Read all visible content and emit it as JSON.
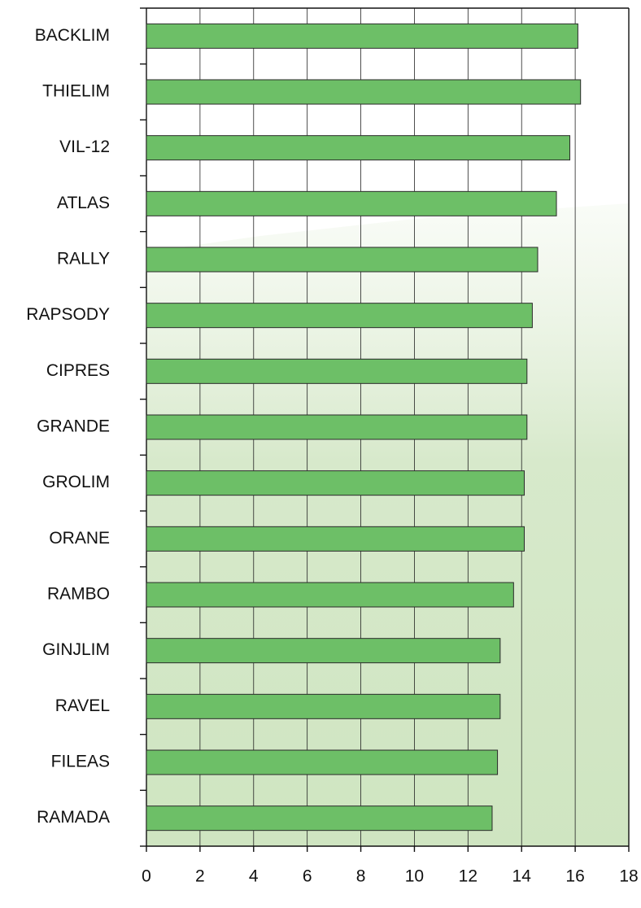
{
  "chart_data": {
    "type": "hbar",
    "categories": [
      "BACKLIM",
      "THIELIM",
      "VIL-12",
      "ATLAS",
      "RALLY",
      "RAPSODY",
      "CIPRES",
      "GRANDE",
      "GROLIM",
      "ORANE",
      "RAMBO",
      "GINJLIM",
      "RAVEL",
      "FILEAS",
      "RAMADA"
    ],
    "values": [
      16.1,
      16.2,
      15.8,
      15.3,
      14.6,
      14.4,
      14.2,
      14.2,
      14.1,
      14.1,
      13.7,
      13.2,
      13.2,
      13.1,
      12.9
    ],
    "color": "#6dbf67",
    "xlim": [
      0,
      18
    ],
    "xticks": [
      0,
      2,
      4,
      6,
      8,
      10,
      12,
      14,
      16,
      18
    ],
    "grid": true
  }
}
